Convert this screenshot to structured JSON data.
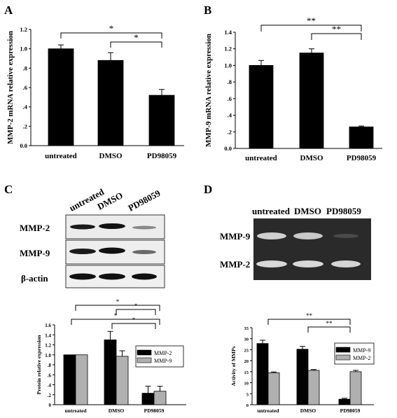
{
  "panels": {
    "A": {
      "letter": "A"
    },
    "B": {
      "letter": "B"
    },
    "C": {
      "letter": "C",
      "blot_lanes": [
        "untreated",
        "DMSO",
        "PD98059"
      ],
      "blot_rows": [
        "MMP-2",
        "MMP-9",
        "β-actin"
      ]
    },
    "D": {
      "letter": "D",
      "gel_lanes": [
        "untreated",
        "DMSO",
        "PD98059"
      ],
      "gel_rows": [
        "MMP-9",
        "MMP-2"
      ]
    }
  },
  "chart_data": [
    {
      "id": "A",
      "type": "bar",
      "ylabel": "MMP-2 mRNA relative expression",
      "categories": [
        "untreated",
        "DMSO",
        "PD98059"
      ],
      "values": [
        1.0,
        0.88,
        0.52
      ],
      "errors": [
        0.04,
        0.08,
        0.06
      ],
      "ylim": [
        0,
        1.2
      ],
      "yticks": [
        "0.0",
        ".2",
        ".4",
        ".6",
        ".8",
        "1.0",
        "1.2"
      ],
      "significance": [
        {
          "from": 0,
          "to": 2,
          "label": "*"
        },
        {
          "from": 1,
          "to": 2,
          "label": "*"
        }
      ]
    },
    {
      "id": "B",
      "type": "bar",
      "ylabel": "MMP-9 mRNA relative expression",
      "categories": [
        "untreated",
        "DMSO",
        "PD98059"
      ],
      "values": [
        1.0,
        1.15,
        0.26
      ],
      "errors": [
        0.06,
        0.05,
        0.01
      ],
      "ylim": [
        0,
        1.4
      ],
      "yticks": [
        "0.0",
        ".2",
        ".4",
        ".6",
        ".8",
        "1.0",
        "1.2",
        "1.4"
      ],
      "significance": [
        {
          "from": 0,
          "to": 2,
          "label": "**"
        },
        {
          "from": 1,
          "to": 2,
          "label": "**"
        }
      ]
    },
    {
      "id": "C",
      "type": "bar",
      "ylabel": "Protein relative expression",
      "categories": [
        "untreated",
        "DMSO",
        "PD98059"
      ],
      "series": [
        {
          "name": "MMP-2",
          "color": "#000000",
          "values": [
            1.0,
            1.3,
            0.23
          ],
          "errors": [
            0.0,
            0.17,
            0.14
          ]
        },
        {
          "name": "MMP-9",
          "color": "#b0b0b0",
          "values": [
            1.0,
            0.97,
            0.27
          ],
          "errors": [
            0.0,
            0.11,
            0.1
          ]
        }
      ],
      "ylim": [
        0,
        1.6
      ],
      "yticks": [
        "0",
        ".2",
        ".4",
        ".6",
        ".8",
        "1.0",
        "1.2",
        "1.4",
        "1.6"
      ],
      "legend": "right",
      "significance": [
        {
          "from": 0,
          "to": 2,
          "label": "*"
        },
        {
          "from": 1,
          "to": 2,
          "label": "*"
        },
        {
          "from": 0,
          "to": 2,
          "label": "*"
        },
        {
          "from": 1,
          "to": 2,
          "label": "*"
        }
      ]
    },
    {
      "id": "D",
      "type": "bar",
      "ylabel": "Activity of MMPs",
      "categories": [
        "untreated",
        "DMSO",
        "PD98059"
      ],
      "series": [
        {
          "name": "MMP-9",
          "color": "#000000",
          "values": [
            27.8,
            25.2,
            2.5
          ],
          "errors": [
            1.5,
            1.3,
            0.4
          ]
        },
        {
          "name": "MMP-2",
          "color": "#b0b0b0",
          "values": [
            14.5,
            15.6,
            15.0
          ],
          "errors": [
            0.4,
            0.4,
            0.6
          ]
        }
      ],
      "ylim": [
        0,
        35
      ],
      "yticks": [
        "0",
        "5",
        "10",
        "15",
        "20",
        "25",
        "30",
        "35"
      ],
      "legend": "right",
      "significance": [
        {
          "from": 0,
          "to": 2,
          "label": "**"
        },
        {
          "from": 1,
          "to": 2,
          "label": "**"
        }
      ]
    }
  ]
}
